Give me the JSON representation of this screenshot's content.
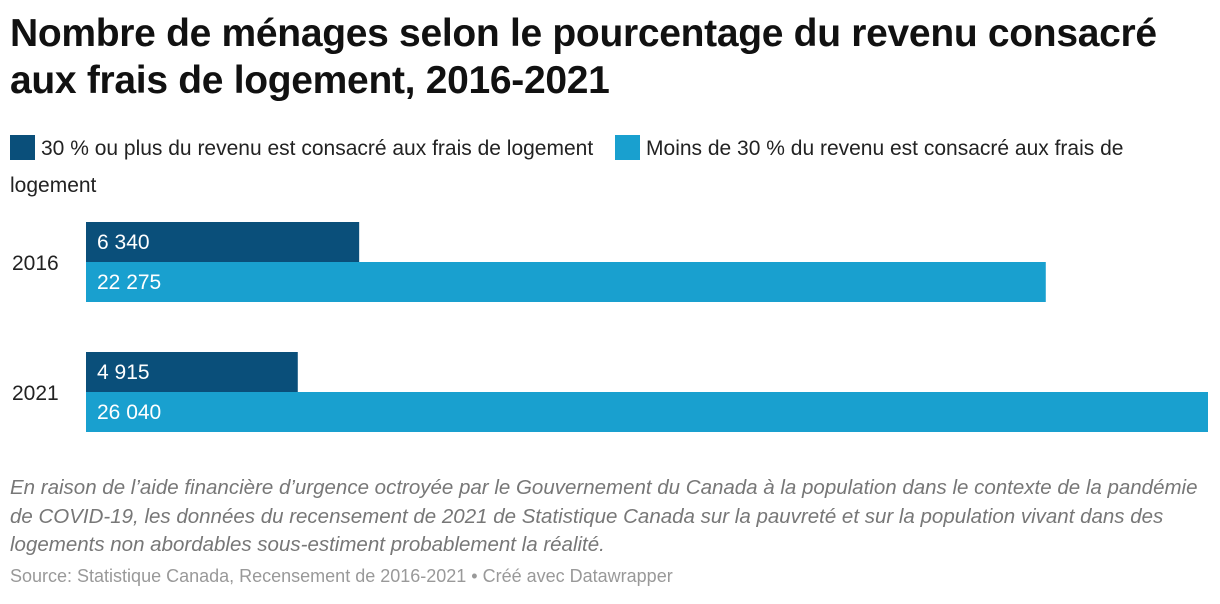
{
  "title": "Nombre de ménages selon le pourcentage du revenu consacré aux frais de logement, 2016-2021",
  "legend": [
    {
      "label": "30 % ou plus du revenu est consacré aux frais de logement",
      "color": "#0a4f7a"
    },
    {
      "label": "Moins de 30 % du revenu est consacré aux frais de logement",
      "color": "#19a0cf"
    }
  ],
  "chart_data": {
    "type": "bar",
    "orientation": "horizontal",
    "categories": [
      "2016",
      "2021"
    ],
    "series": [
      {
        "name": "30 % ou plus du revenu est consacré aux frais de logement",
        "values": [
          6340,
          4915
        ],
        "labels": [
          "6 340",
          "4 915"
        ],
        "color": "#0a4f7a"
      },
      {
        "name": "Moins de 30 % du revenu est consacré aux frais de logement",
        "values": [
          22275,
          26040
        ],
        "labels": [
          "22 275",
          "26 040"
        ],
        "color": "#19a0cf"
      }
    ],
    "xlim": [
      0,
      26040
    ],
    "grid": false,
    "legend_position": "top"
  },
  "note": "En raison de l’aide financière d’urgence octroyée par le Gouvernement du Canada à la population dans le contexte de la pandémie de COVID-19, les données du recensement de 2021 de Statistique Canada sur la pauvreté et sur la population vivant dans des logements non abordables sous-estiment probablement la réalité.",
  "source": "Source: Statistique Canada, Recensement de 2016-2021 • Créé avec Datawrapper"
}
